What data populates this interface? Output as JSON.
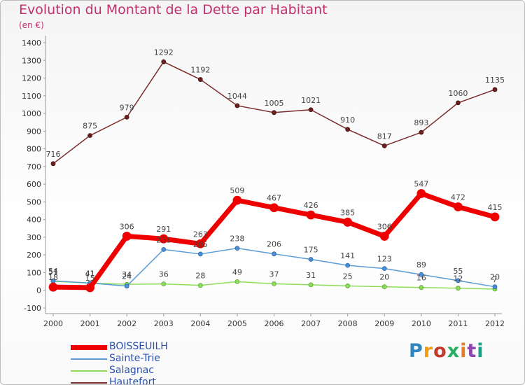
{
  "header": {
    "title": "Evolution du Montant de la Dette par Habitant",
    "subtitle": "(en €)"
  },
  "logo": {
    "text": "Proxiti",
    "colors": [
      "#2e86c1",
      "#f39c12",
      "#c0392b",
      "#27ae60",
      "#e67e22",
      "#8e44ad",
      "#16a085"
    ]
  },
  "chart_data": {
    "type": "line",
    "title": "Evolution du Montant de la Dette par Habitant",
    "subtitle": "(en €)",
    "xlabel": "",
    "ylabel": "",
    "x": [
      "2000",
      "2001",
      "2002",
      "2003",
      "2004",
      "2005",
      "2006",
      "2007",
      "2008",
      "2009",
      "2010",
      "2011",
      "2012"
    ],
    "ylim": [
      -100,
      1400
    ],
    "yticks": [
      -100,
      0,
      100,
      200,
      300,
      400,
      500,
      600,
      700,
      800,
      900,
      1000,
      1100,
      1200,
      1300,
      1400
    ],
    "grid": false,
    "legend_position": "bottom-left",
    "series": [
      {
        "name": "BOISSEUILH",
        "color": "#ee0000",
        "values": [
          18,
          15,
          306,
          291,
          263,
          509,
          467,
          426,
          385,
          306,
          547,
          472,
          415
        ],
        "labels": [
          "18",
          "15",
          "306",
          "291",
          "263",
          "509",
          "467",
          "426",
          "385",
          "306",
          "547",
          "472",
          "415"
        ]
      },
      {
        "name": "Sainte-Trie",
        "color": "#5b9bd5",
        "values": [
          54,
          41,
          24,
          231,
          205,
          238,
          206,
          175,
          141,
          123,
          89,
          55,
          20
        ],
        "labels": [
          "54",
          "41",
          "24",
          "231",
          "205",
          "238",
          "206",
          "175",
          "141",
          "123",
          "89",
          "55",
          "20"
        ]
      },
      {
        "name": "Salagnac",
        "color": "#8fdc5a",
        "values": [
          51,
          41,
          34,
          36,
          28,
          49,
          37,
          31,
          25,
          20,
          16,
          12,
          7
        ],
        "labels": [
          "51",
          "41",
          "34",
          "36",
          "28",
          "49",
          "37",
          "31",
          "25",
          "20",
          "16",
          "12",
          "7"
        ]
      },
      {
        "name": "Hautefort",
        "color": "#7b2d2d",
        "values": [
          716,
          875,
          979,
          1292,
          1192,
          1044,
          1005,
          1021,
          910,
          817,
          893,
          1060,
          1135
        ],
        "labels": [
          "716",
          "875",
          "979",
          "1292",
          "1192",
          "1044",
          "1005",
          "1021",
          "910",
          "817",
          "893",
          "1060",
          "1135"
        ]
      }
    ]
  }
}
